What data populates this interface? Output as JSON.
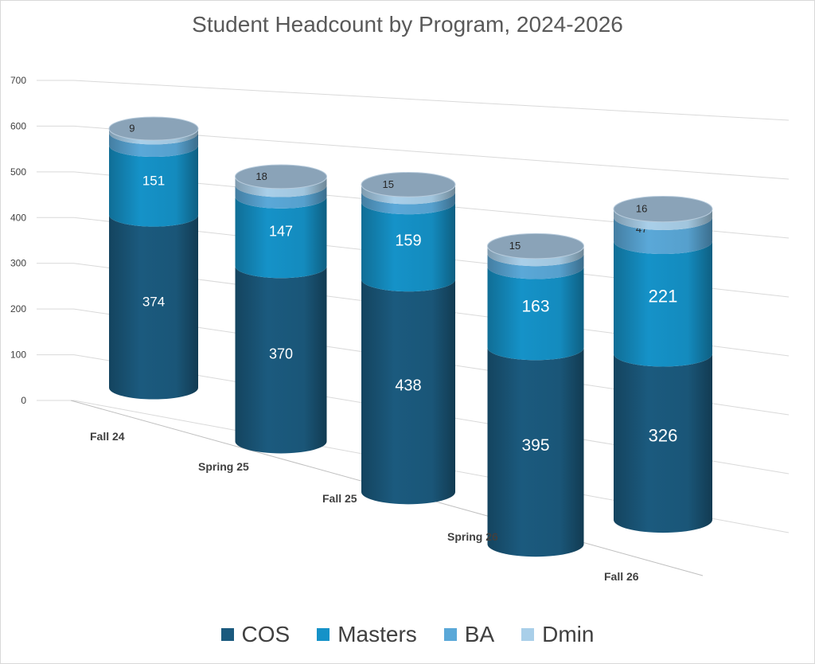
{
  "chart_data": {
    "type": "bar",
    "title": "Student Headcount by Program, 2024-2026",
    "categories": [
      "Fall 24",
      "Spring 25",
      "Fall 25",
      "Spring 26",
      "Fall 26"
    ],
    "series": [
      {
        "name": "COS",
        "values": [
          374,
          370,
          438,
          395,
          326
        ],
        "color": "#1b5a7e"
      },
      {
        "name": "Masters",
        "values": [
          151,
          147,
          159,
          163,
          221
        ],
        "color": "#1592c8"
      },
      {
        "name": "BA",
        "values": [
          27,
          24,
          21,
          26,
          47
        ],
        "color": "#5aa8d8"
      },
      {
        "name": "Dmin",
        "values": [
          9,
          18,
          15,
          15,
          16
        ],
        "color": "#a9cfe9"
      }
    ],
    "yticks": [
      "0",
      "100",
      "200",
      "300",
      "400",
      "500",
      "600",
      "700"
    ],
    "ylim": [
      0,
      700
    ],
    "stacked": true,
    "style": "3d-cylinder",
    "legend_position": "bottom",
    "grid": true
  }
}
